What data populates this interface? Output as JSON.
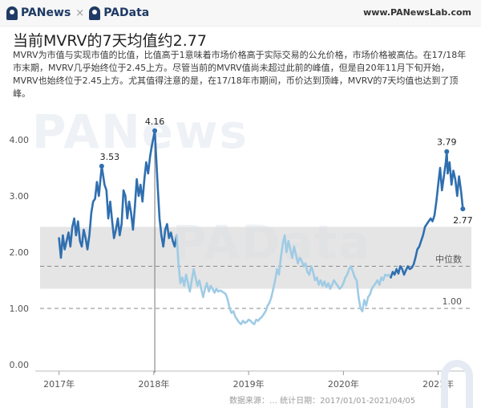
{
  "header": {
    "brand_left": "PANews",
    "separator": "×",
    "brand_right": "PAData",
    "site": "www.PANewsLab.com"
  },
  "title": "当前MVRV的7天均值约2.77",
  "description": "MVRV为市值与实现市值的比值，比值高于1意味着市场价格高于实际交易的公允价格，市场价格被高估。在17/18年市末期，MVRV几乎始终位于2.45上方。尽管当前的MVRV值尚未超过此前的峰值，但是自20年11月下旬开始，MVRV也始终位于2.45上方。尤其值得注意的是，在17/18年市期间，币价达到顶峰，MVRV的7天均值也达到了顶峰。",
  "watermarks": [
    "PANews",
    "PAData"
  ],
  "footer": "数据来源：… 统计日期：2017/01/01-2021/04/05",
  "colors": {
    "line_early": "#2f6fb0",
    "line_mid": "#9fcbe5",
    "line_late": "#2f6fb0",
    "band": "#dcdcdc",
    "reference": "#8a8a8a",
    "axis_text": "#555555"
  },
  "chart_data": {
    "type": "line",
    "title": "",
    "xlabel": "",
    "ylabel": "",
    "ylim": [
      0,
      4.2
    ],
    "xlim": [
      2016.8,
      2021.35
    ],
    "y_ticks": [
      "0.00",
      "1.00",
      "2.00",
      "3.00",
      "4.00"
    ],
    "x_ticks": [
      {
        "label": "2017年",
        "x": 2017.0
      },
      {
        "label": "2018年",
        "x": 2018.0
      },
      {
        "label": "2019年",
        "x": 2019.0
      },
      {
        "label": "2020年",
        "x": 2020.0
      },
      {
        "label": "2021年",
        "x": 2021.0
      }
    ],
    "grid": false,
    "band": {
      "y0": 1.35,
      "y1": 2.45
    },
    "reference_lines": [
      {
        "y": 1.75,
        "label": "中位数"
      },
      {
        "y": 1.0,
        "label": "1.00"
      }
    ],
    "vertical_marker": {
      "x": 2018.01
    },
    "annotations": [
      {
        "x": 2017.45,
        "y": 3.53,
        "label": "3.53"
      },
      {
        "x": 2018.01,
        "y": 4.16,
        "label": "4.16"
      },
      {
        "x": 2021.09,
        "y": 3.79,
        "label": "3.79"
      },
      {
        "x": 2021.26,
        "y": 2.77,
        "label": "2.77"
      }
    ],
    "series": [
      {
        "color_key": "line_early",
        "x": [
          2017.0,
          2017.02,
          2017.04,
          2017.06,
          2017.08,
          2017.1,
          2017.12,
          2017.14,
          2017.16,
          2017.18,
          2017.2,
          2017.22,
          2017.24,
          2017.26,
          2017.28,
          2017.3,
          2017.32,
          2017.34,
          2017.36,
          2017.38,
          2017.4,
          2017.42,
          2017.45,
          2017.48,
          2017.5,
          2017.52,
          2017.54,
          2017.56,
          2017.58,
          2017.6,
          2017.62,
          2017.64,
          2017.66,
          2017.68,
          2017.7,
          2017.72,
          2017.74,
          2017.76,
          2017.78,
          2017.8,
          2017.82,
          2017.84,
          2017.86,
          2017.88,
          2017.9,
          2017.92,
          2017.94,
          2017.96,
          2017.98,
          2018.01,
          2018.04,
          2018.06,
          2018.08,
          2018.1,
          2018.12,
          2018.14,
          2018.16,
          2018.18,
          2018.2,
          2018.22,
          2018.24
        ],
        "y": [
          2.25,
          1.9,
          2.3,
          2.05,
          2.2,
          2.35,
          2.1,
          2.45,
          2.6,
          2.3,
          2.55,
          2.2,
          2.1,
          2.4,
          2.25,
          2.05,
          2.3,
          2.7,
          2.9,
          2.95,
          3.25,
          3.0,
          3.53,
          3.2,
          3.1,
          2.6,
          2.9,
          2.55,
          2.25,
          2.4,
          2.6,
          2.3,
          2.5,
          3.1,
          3.0,
          2.6,
          2.9,
          2.7,
          2.4,
          2.8,
          3.3,
          3.0,
          3.2,
          2.9,
          3.3,
          3.6,
          3.4,
          3.7,
          3.9,
          4.16,
          3.2,
          2.6,
          2.3,
          2.1,
          2.4,
          2.5,
          2.25,
          2.35,
          2.2,
          2.1,
          2.3
        ]
      },
      {
        "color_key": "line_mid",
        "x": [
          2018.24,
          2018.26,
          2018.28,
          2018.3,
          2018.32,
          2018.34,
          2018.36,
          2018.38,
          2018.4,
          2018.42,
          2018.44,
          2018.46,
          2018.48,
          2018.5,
          2018.52,
          2018.54,
          2018.56,
          2018.58,
          2018.6,
          2018.62,
          2018.64,
          2018.66,
          2018.68,
          2018.7,
          2018.72,
          2018.74,
          2018.76,
          2018.78,
          2018.8,
          2018.82,
          2018.84,
          2018.86,
          2018.88,
          2018.9,
          2018.92,
          2018.94,
          2018.96,
          2018.98,
          2019.0,
          2019.02,
          2019.04,
          2019.06,
          2019.08,
          2019.1,
          2019.12,
          2019.14,
          2019.16,
          2019.18,
          2019.2,
          2019.22,
          2019.24,
          2019.26,
          2019.28,
          2019.3,
          2019.32,
          2019.34,
          2019.36,
          2019.38,
          2019.4,
          2019.42,
          2019.44,
          2019.46,
          2019.48,
          2019.5,
          2019.52,
          2019.54,
          2019.56,
          2019.58,
          2019.6,
          2019.62,
          2019.64,
          2019.66,
          2019.68,
          2019.7,
          2019.72,
          2019.74,
          2019.76,
          2019.78,
          2019.8,
          2019.82,
          2019.84,
          2019.86,
          2019.88,
          2019.9,
          2019.92,
          2019.94,
          2019.96,
          2019.98,
          2020.0,
          2020.02,
          2020.04,
          2020.06,
          2020.08,
          2020.1,
          2020.12,
          2020.14,
          2020.16,
          2020.18,
          2020.2,
          2020.22,
          2020.24,
          2020.26,
          2020.28,
          2020.3,
          2020.32,
          2020.34,
          2020.36,
          2020.38,
          2020.4,
          2020.42,
          2020.44,
          2020.46,
          2020.48,
          2020.5
        ],
        "y": [
          2.3,
          1.8,
          1.45,
          1.55,
          1.4,
          1.6,
          1.45,
          1.3,
          1.5,
          1.7,
          1.55,
          1.4,
          1.5,
          1.35,
          1.2,
          1.35,
          1.45,
          1.3,
          1.4,
          1.35,
          1.28,
          1.35,
          1.3,
          1.32,
          1.3,
          1.28,
          1.25,
          1.15,
          1.0,
          0.92,
          0.95,
          0.85,
          0.8,
          0.75,
          0.72,
          0.78,
          0.74,
          0.76,
          0.8,
          0.78,
          0.74,
          0.72,
          0.8,
          0.78,
          0.82,
          0.85,
          0.9,
          0.95,
          1.05,
          1.1,
          1.2,
          1.35,
          1.5,
          1.7,
          1.6,
          1.9,
          2.15,
          2.3,
          2.0,
          2.2,
          2.05,
          1.9,
          2.1,
          1.95,
          1.8,
          1.9,
          1.85,
          1.75,
          1.8,
          1.65,
          1.6,
          1.75,
          1.65,
          1.5,
          1.55,
          1.42,
          1.5,
          1.4,
          1.48,
          1.38,
          1.45,
          1.35,
          1.42,
          1.5,
          1.45,
          1.4,
          1.35,
          1.38,
          1.45,
          1.55,
          1.6,
          1.7,
          1.75,
          1.65,
          1.55,
          1.5,
          1.2,
          1.0,
          0.95,
          1.15,
          1.05,
          1.2,
          1.25,
          1.35,
          1.4,
          1.45,
          1.5,
          1.42,
          1.55,
          1.5,
          1.6,
          1.58,
          1.6,
          1.55
        ]
      },
      {
        "color_key": "line_late",
        "x": [
          2020.5,
          2020.52,
          2020.54,
          2020.56,
          2020.58,
          2020.6,
          2020.62,
          2020.64,
          2020.66,
          2020.68,
          2020.7,
          2020.72,
          2020.74,
          2020.76,
          2020.78,
          2020.8,
          2020.82,
          2020.84,
          2020.86,
          2020.88,
          2020.9,
          2020.92,
          2020.94,
          2020.96,
          2020.98,
          2021.0,
          2021.02,
          2021.04,
          2021.06,
          2021.08,
          2021.09,
          2021.1,
          2021.12,
          2021.14,
          2021.16,
          2021.18,
          2021.2,
          2021.22,
          2021.24,
          2021.26
        ],
        "y": [
          1.55,
          1.65,
          1.6,
          1.7,
          1.62,
          1.75,
          1.7,
          1.6,
          1.68,
          1.75,
          1.7,
          1.72,
          1.78,
          1.9,
          2.05,
          2.1,
          2.2,
          2.3,
          2.45,
          2.5,
          2.55,
          2.6,
          2.55,
          2.65,
          2.9,
          3.2,
          3.5,
          3.1,
          3.35,
          3.6,
          3.79,
          3.4,
          3.6,
          3.2,
          3.45,
          3.3,
          3.0,
          3.35,
          3.1,
          2.77
        ]
      }
    ]
  }
}
